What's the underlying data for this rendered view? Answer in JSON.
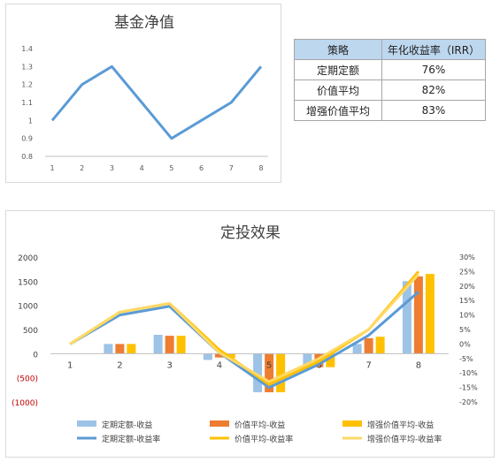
{
  "chart_data": [
    {
      "type": "line",
      "title": "基金净值",
      "x": [
        1,
        2,
        3,
        4,
        5,
        6,
        7,
        8
      ],
      "series": [
        {
          "values": [
            1.0,
            1.2,
            1.3,
            1.1,
            0.9,
            1.0,
            1.1,
            1.3
          ]
        }
      ],
      "ylim": [
        0.8,
        1.4
      ],
      "yticks": [
        "0.8",
        "0.9",
        "1",
        "1.1",
        "1.2",
        "1.3",
        "1.4"
      ],
      "grid": false,
      "colors": {
        "line": "#5b9bd5"
      }
    },
    {
      "type": "bar",
      "title": "定投效果",
      "categories": [
        "1",
        "2",
        "3",
        "4",
        "5",
        "6",
        "7",
        "8"
      ],
      "bar_series": [
        {
          "name": "定期定额-收益",
          "color": "#9dc3e6",
          "values": [
            0,
            200,
            390,
            -130,
            -800,
            -330,
            200,
            1500
          ]
        },
        {
          "name": "价值平均-收益",
          "color": "#ed7d31",
          "values": [
            0,
            200,
            370,
            -80,
            -800,
            -280,
            320,
            1600
          ]
        },
        {
          "name": "增强价值平均-收益",
          "color": "#ffc000",
          "values": [
            0,
            200,
            370,
            -90,
            -800,
            -280,
            350,
            1650
          ]
        }
      ],
      "line_series": [
        {
          "name": "定期定额-收益率",
          "color": "#5b9bd5",
          "values": [
            0,
            10,
            13,
            -3,
            -15,
            -7,
            3,
            18
          ]
        },
        {
          "name": "价值平均-收益率",
          "color": "#ffc000",
          "values": [
            0,
            11,
            14,
            -2,
            -14,
            -6,
            5,
            25
          ]
        },
        {
          "name": "增强价值平均-收益率",
          "color": "#ffd966",
          "values": [
            0,
            11,
            14,
            -3,
            -13,
            -5,
            5,
            24
          ]
        }
      ],
      "y_left": {
        "range": [
          -1000,
          2000
        ],
        "ticks": [
          2000,
          1500,
          1000,
          500,
          0,
          -500,
          -1000
        ],
        "tick_labels": [
          "2000",
          "1500",
          "1000",
          "500",
          "0",
          "(500)",
          "(1000)"
        ],
        "negative_color": "#c00000"
      },
      "y_right": {
        "range": [
          -20,
          30
        ],
        "ticks": [
          30,
          25,
          20,
          15,
          10,
          5,
          0,
          -5,
          -10,
          -15,
          -20
        ],
        "tick_labels": [
          "30%",
          "25%",
          "20%",
          "15%",
          "10%",
          "5%",
          "0%",
          "-5%",
          "-10%",
          "-15%",
          "-20%"
        ]
      },
      "legend": "bottom",
      "grid": false
    }
  ],
  "irr_table": {
    "headers": [
      "策略",
      "年化收益率（IRR）"
    ],
    "rows": [
      {
        "name": "定期定额",
        "value": "76%"
      },
      {
        "name": "价值平均",
        "value": "82%"
      },
      {
        "name": "增强价值平均",
        "value": "83%"
      }
    ]
  }
}
